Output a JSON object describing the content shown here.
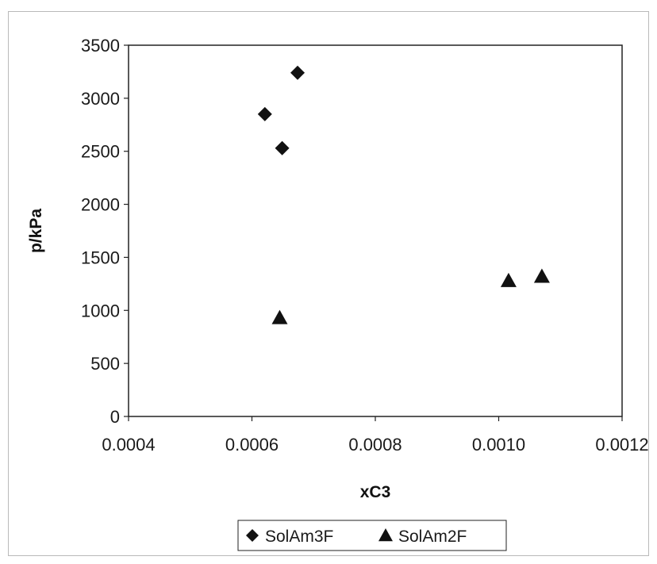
{
  "chart_data": {
    "type": "scatter",
    "title": "",
    "xlabel": "xC3",
    "ylabel": "p/kPa",
    "xlim": [
      0.0004,
      0.0012
    ],
    "ylim": [
      0,
      3500
    ],
    "x_ticks": [
      "0.0004",
      "0.0006",
      "0.0008",
      "0.0010",
      "0.0012"
    ],
    "x_tick_values": [
      0.0004,
      0.0006,
      0.0008,
      0.001,
      0.0012
    ],
    "y_ticks": [
      "0",
      "500",
      "1000",
      "1500",
      "2000",
      "2500",
      "3000",
      "3500"
    ],
    "y_tick_values": [
      0,
      500,
      1000,
      1500,
      2000,
      2500,
      3000,
      3500
    ],
    "grid": false,
    "legend_position": "bottom",
    "series": [
      {
        "name": "SolAm3F",
        "marker": "diamond",
        "color": "#111111",
        "points": [
          {
            "x": 0.000621,
            "y": 2850
          },
          {
            "x": 0.000649,
            "y": 2530
          },
          {
            "x": 0.000674,
            "y": 3240
          }
        ]
      },
      {
        "name": "SolAm2F",
        "marker": "triangle",
        "color": "#111111",
        "points": [
          {
            "x": 0.000645,
            "y": 930
          },
          {
            "x": 0.001016,
            "y": 1280
          },
          {
            "x": 0.00107,
            "y": 1320
          }
        ]
      }
    ]
  }
}
